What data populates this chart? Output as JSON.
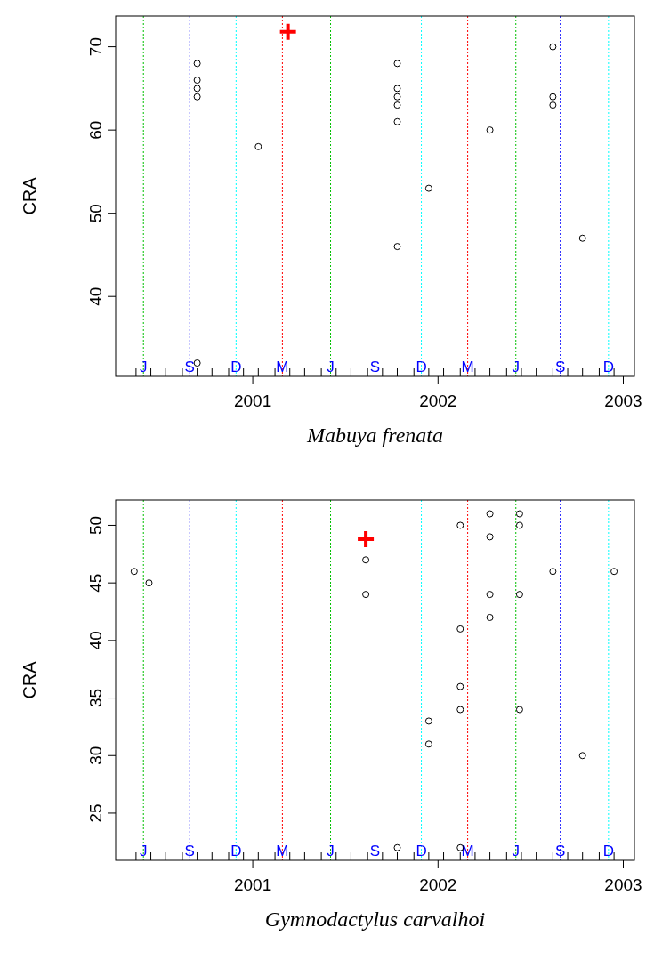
{
  "chart_data": [
    {
      "type": "scatter",
      "xlabel": "Mabuya frenata",
      "ylabel": "CRA",
      "xlim": [
        2000.26,
        2003.06
      ],
      "ylim": [
        30.4,
        73.7
      ],
      "yticks": [
        40,
        50,
        60,
        70
      ],
      "xticks": [
        2001,
        2002,
        2003,
        {
          "value": 2000.37,
          "label": null
        },
        {
          "value": 2000.45,
          "label": null
        },
        {
          "value": 2000.53,
          "label": null
        },
        {
          "value": 2000.62,
          "label": null
        },
        {
          "value": 2000.7,
          "label": null
        },
        {
          "value": 2000.78,
          "label": null
        },
        {
          "value": 2000.87,
          "label": null
        },
        {
          "value": 2000.95,
          "label": null
        },
        {
          "value": 2001.03,
          "label": null
        },
        {
          "value": 2001.12,
          "label": null
        },
        {
          "value": 2001.2,
          "label": null
        },
        {
          "value": 2001.28,
          "label": null
        },
        {
          "value": 2001.37,
          "label": null
        },
        {
          "value": 2001.45,
          "label": null
        },
        {
          "value": 2001.53,
          "label": null
        },
        {
          "value": 2001.62,
          "label": null
        },
        {
          "value": 2001.7,
          "label": null
        },
        {
          "value": 2001.78,
          "label": null
        },
        {
          "value": 2001.87,
          "label": null
        },
        {
          "value": 2001.95,
          "label": null
        },
        {
          "value": 2002.03,
          "label": null
        },
        {
          "value": 2002.12,
          "label": null
        },
        {
          "value": 2002.2,
          "label": null
        },
        {
          "value": 2002.28,
          "label": null
        },
        {
          "value": 2002.37,
          "label": null
        },
        {
          "value": 2002.45,
          "label": null
        },
        {
          "value": 2002.53,
          "label": null
        },
        {
          "value": 2002.62,
          "label": null
        },
        {
          "value": 2002.7,
          "label": null
        },
        {
          "value": 2002.78,
          "label": null
        },
        {
          "value": 2002.87,
          "label": null
        },
        {
          "value": 2002.95,
          "label": null
        }
      ],
      "grid": false,
      "ref_lines": [
        {
          "axis": "x",
          "value": 2000.41,
          "label": "J",
          "color": "#00c000",
          "line_style": "dotted"
        },
        {
          "axis": "x",
          "value": 2000.66,
          "label": "S",
          "color": "#0000ff",
          "line_style": "dotted"
        },
        {
          "axis": "x",
          "value": 2000.91,
          "label": "D",
          "color": "#00ffff",
          "line_style": "dotted"
        },
        {
          "axis": "x",
          "value": 2001.16,
          "label": "M",
          "color": "#ff0000",
          "line_style": "dotted"
        },
        {
          "axis": "x",
          "value": 2001.42,
          "label": "J",
          "color": "#00c000",
          "line_style": "dotted"
        },
        {
          "axis": "x",
          "value": 2001.66,
          "label": "S",
          "color": "#0000ff",
          "line_style": "dotted"
        },
        {
          "axis": "x",
          "value": 2001.91,
          "label": "D",
          "color": "#00ffff",
          "line_style": "dotted"
        },
        {
          "axis": "x",
          "value": 2002.16,
          "label": "M",
          "color": "#ff0000",
          "line_style": "dotted"
        },
        {
          "axis": "x",
          "value": 2002.42,
          "label": "J",
          "color": "#00c000",
          "line_style": "dotted"
        },
        {
          "axis": "x",
          "value": 2002.66,
          "label": "S",
          "color": "#0000ff",
          "line_style": "dotted"
        },
        {
          "axis": "x",
          "value": 2002.92,
          "label": "D",
          "color": "#00ffff",
          "line_style": "dotted"
        }
      ],
      "series": [
        {
          "marker": "circle",
          "color": "#000000",
          "x": [
            2000.7,
            2000.7,
            2000.7,
            2000.7,
            2000.7,
            2001.03,
            2001.78,
            2001.78,
            2001.78,
            2001.78,
            2001.78,
            2001.78,
            2001.95,
            2002.28,
            2002.62,
            2002.62,
            2002.62,
            2002.78
          ],
          "values": [
            68,
            66,
            65,
            64,
            32,
            58,
            68,
            65,
            64,
            63,
            61,
            46,
            53,
            60,
            70,
            64,
            63,
            47
          ]
        },
        {
          "marker": "cross",
          "color": "#ff0000",
          "x": [
            2001.19
          ],
          "values": [
            71.8
          ]
        }
      ]
    },
    {
      "type": "scatter",
      "xlabel": "Gymnodactylus carvalhoi",
      "ylabel": "CRA",
      "xlim": [
        2000.26,
        2003.06
      ],
      "ylim": [
        20.9,
        52.2
      ],
      "yticks": [
        25,
        30,
        35,
        40,
        45,
        50
      ],
      "xticks": [
        2001,
        2002,
        2003,
        {
          "value": 2000.37,
          "label": null
        },
        {
          "value": 2000.45,
          "label": null
        },
        {
          "value": 2000.53,
          "label": null
        },
        {
          "value": 2000.62,
          "label": null
        },
        {
          "value": 2000.7,
          "label": null
        },
        {
          "value": 2000.78,
          "label": null
        },
        {
          "value": 2000.87,
          "label": null
        },
        {
          "value": 2000.95,
          "label": null
        },
        {
          "value": 2001.03,
          "label": null
        },
        {
          "value": 2001.12,
          "label": null
        },
        {
          "value": 2001.2,
          "label": null
        },
        {
          "value": 2001.28,
          "label": null
        },
        {
          "value": 2001.37,
          "label": null
        },
        {
          "value": 2001.45,
          "label": null
        },
        {
          "value": 2001.53,
          "label": null
        },
        {
          "value": 2001.62,
          "label": null
        },
        {
          "value": 2001.7,
          "label": null
        },
        {
          "value": 2001.78,
          "label": null
        },
        {
          "value": 2001.87,
          "label": null
        },
        {
          "value": 2001.95,
          "label": null
        },
        {
          "value": 2002.03,
          "label": null
        },
        {
          "value": 2002.12,
          "label": null
        },
        {
          "value": 2002.2,
          "label": null
        },
        {
          "value": 2002.28,
          "label": null
        },
        {
          "value": 2002.37,
          "label": null
        },
        {
          "value": 2002.45,
          "label": null
        },
        {
          "value": 2002.53,
          "label": null
        },
        {
          "value": 2002.62,
          "label": null
        },
        {
          "value": 2002.7,
          "label": null
        },
        {
          "value": 2002.78,
          "label": null
        },
        {
          "value": 2002.87,
          "label": null
        },
        {
          "value": 2002.95,
          "label": null
        }
      ],
      "grid": false,
      "ref_lines": [
        {
          "axis": "x",
          "value": 2000.41,
          "label": "J",
          "color": "#00c000",
          "line_style": "dotted"
        },
        {
          "axis": "x",
          "value": 2000.66,
          "label": "S",
          "color": "#0000ff",
          "line_style": "dotted"
        },
        {
          "axis": "x",
          "value": 2000.91,
          "label": "D",
          "color": "#00ffff",
          "line_style": "dotted"
        },
        {
          "axis": "x",
          "value": 2001.16,
          "label": "M",
          "color": "#ff0000",
          "line_style": "dotted"
        },
        {
          "axis": "x",
          "value": 2001.42,
          "label": "J",
          "color": "#00c000",
          "line_style": "dotted"
        },
        {
          "axis": "x",
          "value": 2001.66,
          "label": "S",
          "color": "#0000ff",
          "line_style": "dotted"
        },
        {
          "axis": "x",
          "value": 2001.91,
          "label": "D",
          "color": "#00ffff",
          "line_style": "dotted"
        },
        {
          "axis": "x",
          "value": 2002.16,
          "label": "M",
          "color": "#ff0000",
          "line_style": "dotted"
        },
        {
          "axis": "x",
          "value": 2002.42,
          "label": "J",
          "color": "#00c000",
          "line_style": "dotted"
        },
        {
          "axis": "x",
          "value": 2002.66,
          "label": "S",
          "color": "#0000ff",
          "line_style": "dotted"
        },
        {
          "axis": "x",
          "value": 2002.92,
          "label": "D",
          "color": "#00ffff",
          "line_style": "dotted"
        }
      ],
      "series": [
        {
          "marker": "circle",
          "color": "#000000",
          "x": [
            2000.36,
            2000.44,
            2001.61,
            2001.61,
            2001.78,
            2001.95,
            2001.95,
            2002.12,
            2002.12,
            2002.12,
            2002.12,
            2002.12,
            2002.28,
            2002.28,
            2002.28,
            2002.28,
            2002.44,
            2002.44,
            2002.44,
            2002.44,
            2002.62,
            2002.78,
            2002.95
          ],
          "values": [
            46,
            45,
            47,
            44,
            22,
            33,
            31,
            50,
            41,
            36,
            34,
            22,
            51,
            49,
            44,
            42,
            51,
            50,
            44,
            34,
            46,
            30,
            46
          ]
        },
        {
          "marker": "cross",
          "color": "#ff0000",
          "x": [
            2001.61
          ],
          "values": [
            48.8
          ]
        }
      ]
    }
  ]
}
